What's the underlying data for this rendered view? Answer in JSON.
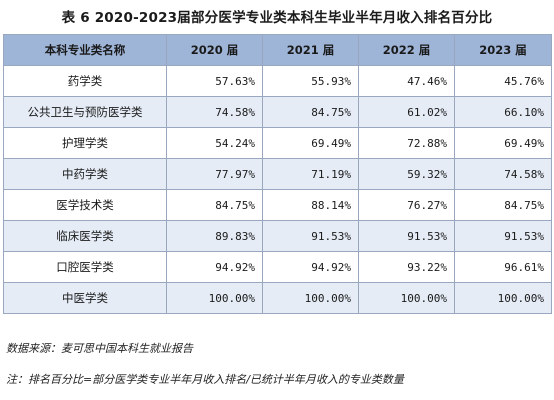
{
  "title": "表 6  2020-2023届部分医学专业类本科生毕业半年月收入排名百分比",
  "table": {
    "headers": [
      "本科专业类名称",
      "2020 届",
      "2021 届",
      "2022 届",
      "2023 届"
    ],
    "rows": [
      {
        "name": "药学类",
        "values": [
          "57.63%",
          "55.93%",
          "47.46%",
          "45.76%"
        ]
      },
      {
        "name": "公共卫生与预防医学类",
        "values": [
          "74.58%",
          "84.75%",
          "61.02%",
          "66.10%"
        ]
      },
      {
        "name": "护理学类",
        "values": [
          "54.24%",
          "69.49%",
          "72.88%",
          "69.49%"
        ]
      },
      {
        "name": "中药学类",
        "values": [
          "77.97%",
          "71.19%",
          "59.32%",
          "74.58%"
        ]
      },
      {
        "name": "医学技术类",
        "values": [
          "84.75%",
          "88.14%",
          "76.27%",
          "84.75%"
        ]
      },
      {
        "name": "临床医学类",
        "values": [
          "89.83%",
          "91.53%",
          "91.53%",
          "91.53%"
        ]
      },
      {
        "name": "口腔医学类",
        "values": [
          "94.92%",
          "94.92%",
          "93.22%",
          "96.61%"
        ]
      },
      {
        "name": "中医学类",
        "values": [
          "100.00%",
          "100.00%",
          "100.00%",
          "100.00%"
        ]
      }
    ]
  },
  "notes": {
    "source": "数据来源：麦可思中国本科生就业报告",
    "description": "注：排名百分比=部分医学类专业半年月收入排名/已统计半年月收入的专业类数量"
  }
}
